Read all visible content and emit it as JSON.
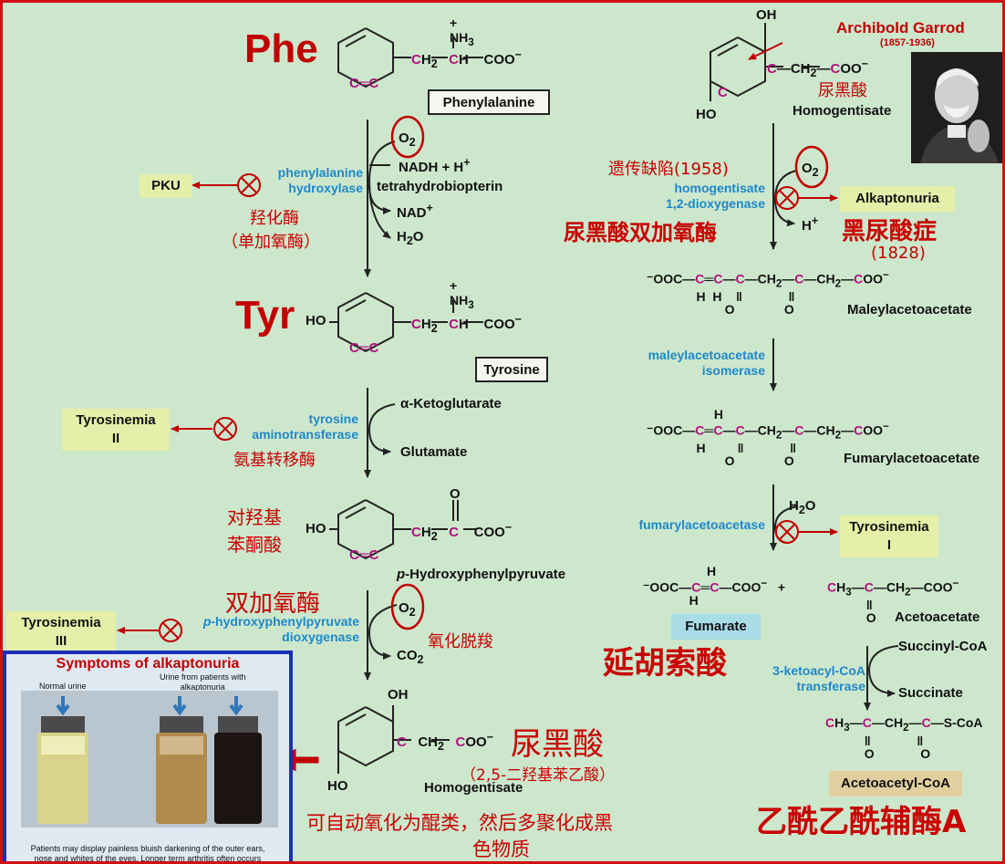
{
  "title_phe": "Phe",
  "title_tyr": "Tyr",
  "phenylalanine_label": "Phenylalanine",
  "tyrosine_label": "Tyrosine",
  "hpp_label": "p-Hydroxyphenylpyruvate",
  "homogentisate_label": "Homogentisate",
  "homogentisate_top_label": "Homogentisate",
  "o2": "O2",
  "step1": {
    "enzyme": [
      "phenylalanine",
      "hydroxylase"
    ],
    "cofactors": [
      "NADH + H+",
      "tetrahydrobiopterin",
      "NAD+",
      "H2O"
    ],
    "cn_enzyme": [
      "羟化酶",
      "（单加氧酶）"
    ],
    "disease": "PKU"
  },
  "step2": {
    "enzyme": [
      "tyrosine",
      "aminotransferase"
    ],
    "cofactors": [
      "α-Ketoglutarate",
      "Glutamate"
    ],
    "cn_enzyme": "氨基转移酶",
    "disease": [
      "Tyrosinemia",
      "II"
    ],
    "cn_product": [
      "对羟基",
      "苯酮酸"
    ]
  },
  "step3": {
    "enzyme": [
      "p-hydroxyphenylpyruvate",
      "dioxygenase"
    ],
    "cofactors": [
      "CO2"
    ],
    "cn_enzyme": "双加氧酶",
    "cn_reaction": "氧化脱羧",
    "disease": [
      "Tyrosinemia",
      "III"
    ]
  },
  "homogentisate_cn": "尿黑酸",
  "homogentisate_cn_top": "尿黑酸",
  "homogentisate_desc": "（2,5-二羟基苯乙酸）",
  "oxidation_note": [
    "可自动氧化为醌类，然后多聚化成黑",
    "色物质"
  ],
  "garrod": {
    "name": "Archibold Garrod",
    "years": "(1857-1936)"
  },
  "step4": {
    "enzyme": [
      "homogentisate",
      "1,2-dioxygenase"
    ],
    "defect": "遗传缺陷(1958)",
    "cn_enzyme": "尿黑酸双加氧酶",
    "cofactor": "H+",
    "disease": "Alkaptonuria",
    "disease_cn": "黑尿酸症",
    "disease_year": "(1828)"
  },
  "maleylacetoacetate": "Maleylacetoacetate",
  "step5": {
    "enzyme": [
      "maleylacetoacetate",
      "isomerase"
    ]
  },
  "fumarylacetoacetate": "Fumarylacetoacetate",
  "step6": {
    "enzyme": "fumarylacetoacetase",
    "cofactor": "H2O",
    "disease": [
      "Tyrosinemia",
      "I"
    ]
  },
  "fumarate": "Fumarate",
  "fumarate_cn": "延胡索酸",
  "acetoacetate": "Acetoacetate",
  "step7": {
    "enzyme": [
      "3-ketoacyl-CoA",
      "transferase"
    ],
    "cofactors": [
      "Succinyl-CoA",
      "Succinate"
    ]
  },
  "acetoacetyl_coa": "Acetoacetyl-CoA",
  "acetoacetyl_coa_cn": "乙酰乙酰辅酶A",
  "inset": {
    "title": "Symptoms of alkaptonuria",
    "normal": "Normal urine",
    "patient": [
      "Urine from patients with",
      "alkaptonuria"
    ],
    "caption": [
      "Patients may display painless bluish darkening of the outer ears,",
      "nose and whites of the eyes. Longer term arthritis often occurs"
    ]
  },
  "colors": {
    "red": "#c00000",
    "blue": "#1f88c8",
    "magenta": "#b0127a",
    "bg": "#cde7cd",
    "disease_box": "#e6efa9"
  }
}
